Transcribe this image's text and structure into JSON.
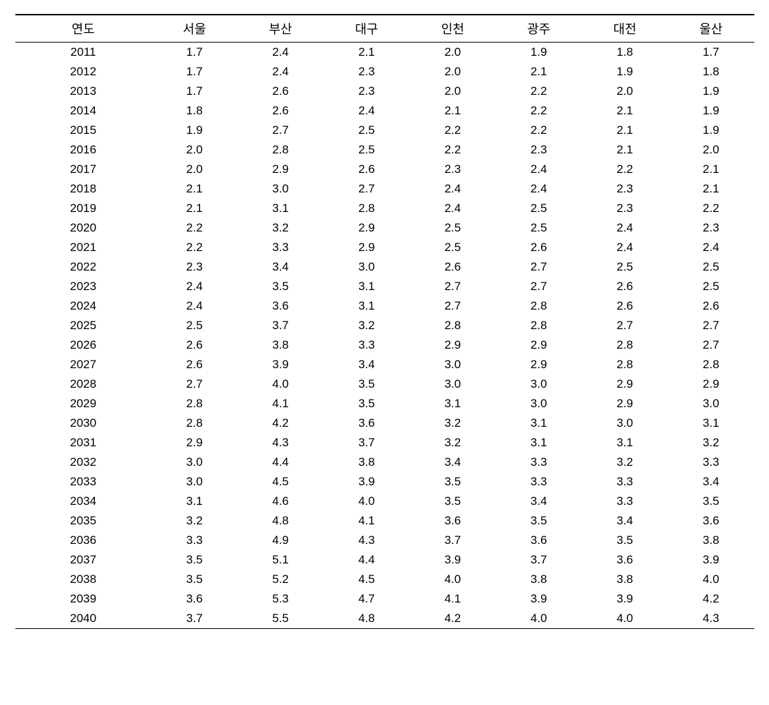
{
  "table": {
    "columns": [
      "연도",
      "서울",
      "부산",
      "대구",
      "인천",
      "광주",
      "대전",
      "울산"
    ],
    "rows": [
      [
        "2011",
        "1.7",
        "2.4",
        "2.1",
        "2.0",
        "1.9",
        "1.8",
        "1.7"
      ],
      [
        "2012",
        "1.7",
        "2.4",
        "2.3",
        "2.0",
        "2.1",
        "1.9",
        "1.8"
      ],
      [
        "2013",
        "1.7",
        "2.6",
        "2.3",
        "2.0",
        "2.2",
        "2.0",
        "1.9"
      ],
      [
        "2014",
        "1.8",
        "2.6",
        "2.4",
        "2.1",
        "2.2",
        "2.1",
        "1.9"
      ],
      [
        "2015",
        "1.9",
        "2.7",
        "2.5",
        "2.2",
        "2.2",
        "2.1",
        "1.9"
      ],
      [
        "2016",
        "2.0",
        "2.8",
        "2.5",
        "2.2",
        "2.3",
        "2.1",
        "2.0"
      ],
      [
        "2017",
        "2.0",
        "2.9",
        "2.6",
        "2.3",
        "2.4",
        "2.2",
        "2.1"
      ],
      [
        "2018",
        "2.1",
        "3.0",
        "2.7",
        "2.4",
        "2.4",
        "2.3",
        "2.1"
      ],
      [
        "2019",
        "2.1",
        "3.1",
        "2.8",
        "2.4",
        "2.5",
        "2.3",
        "2.2"
      ],
      [
        "2020",
        "2.2",
        "3.2",
        "2.9",
        "2.5",
        "2.5",
        "2.4",
        "2.3"
      ],
      [
        "2021",
        "2.2",
        "3.3",
        "2.9",
        "2.5",
        "2.6",
        "2.4",
        "2.4"
      ],
      [
        "2022",
        "2.3",
        "3.4",
        "3.0",
        "2.6",
        "2.7",
        "2.5",
        "2.5"
      ],
      [
        "2023",
        "2.4",
        "3.5",
        "3.1",
        "2.7",
        "2.7",
        "2.6",
        "2.5"
      ],
      [
        "2024",
        "2.4",
        "3.6",
        "3.1",
        "2.7",
        "2.8",
        "2.6",
        "2.6"
      ],
      [
        "2025",
        "2.5",
        "3.7",
        "3.2",
        "2.8",
        "2.8",
        "2.7",
        "2.7"
      ],
      [
        "2026",
        "2.6",
        "3.8",
        "3.3",
        "2.9",
        "2.9",
        "2.8",
        "2.7"
      ],
      [
        "2027",
        "2.6",
        "3.9",
        "3.4",
        "3.0",
        "2.9",
        "2.8",
        "2.8"
      ],
      [
        "2028",
        "2.7",
        "4.0",
        "3.5",
        "3.0",
        "3.0",
        "2.9",
        "2.9"
      ],
      [
        "2029",
        "2.8",
        "4.1",
        "3.5",
        "3.1",
        "3.0",
        "2.9",
        "3.0"
      ],
      [
        "2030",
        "2.8",
        "4.2",
        "3.6",
        "3.2",
        "3.1",
        "3.0",
        "3.1"
      ],
      [
        "2031",
        "2.9",
        "4.3",
        "3.7",
        "3.2",
        "3.1",
        "3.1",
        "3.2"
      ],
      [
        "2032",
        "3.0",
        "4.4",
        "3.8",
        "3.4",
        "3.3",
        "3.2",
        "3.3"
      ],
      [
        "2033",
        "3.0",
        "4.5",
        "3.9",
        "3.5",
        "3.3",
        "3.3",
        "3.4"
      ],
      [
        "2034",
        "3.1",
        "4.6",
        "4.0",
        "3.5",
        "3.4",
        "3.3",
        "3.5"
      ],
      [
        "2035",
        "3.2",
        "4.8",
        "4.1",
        "3.6",
        "3.5",
        "3.4",
        "3.6"
      ],
      [
        "2036",
        "3.3",
        "4.9",
        "4.3",
        "3.7",
        "3.6",
        "3.5",
        "3.8"
      ],
      [
        "2037",
        "3.5",
        "5.1",
        "4.4",
        "3.9",
        "3.7",
        "3.6",
        "3.9"
      ],
      [
        "2038",
        "3.5",
        "5.2",
        "4.5",
        "4.0",
        "3.8",
        "3.8",
        "4.0"
      ],
      [
        "2039",
        "3.6",
        "5.3",
        "4.7",
        "4.1",
        "3.9",
        "3.9",
        "4.2"
      ],
      [
        "2040",
        "3.7",
        "5.5",
        "4.8",
        "4.2",
        "4.0",
        "4.0",
        "4.3"
      ]
    ],
    "header_fontsize": 18,
    "cell_fontsize": 17,
    "border_color": "#000000",
    "background_color": "#ffffff",
    "text_color": "#000000"
  }
}
